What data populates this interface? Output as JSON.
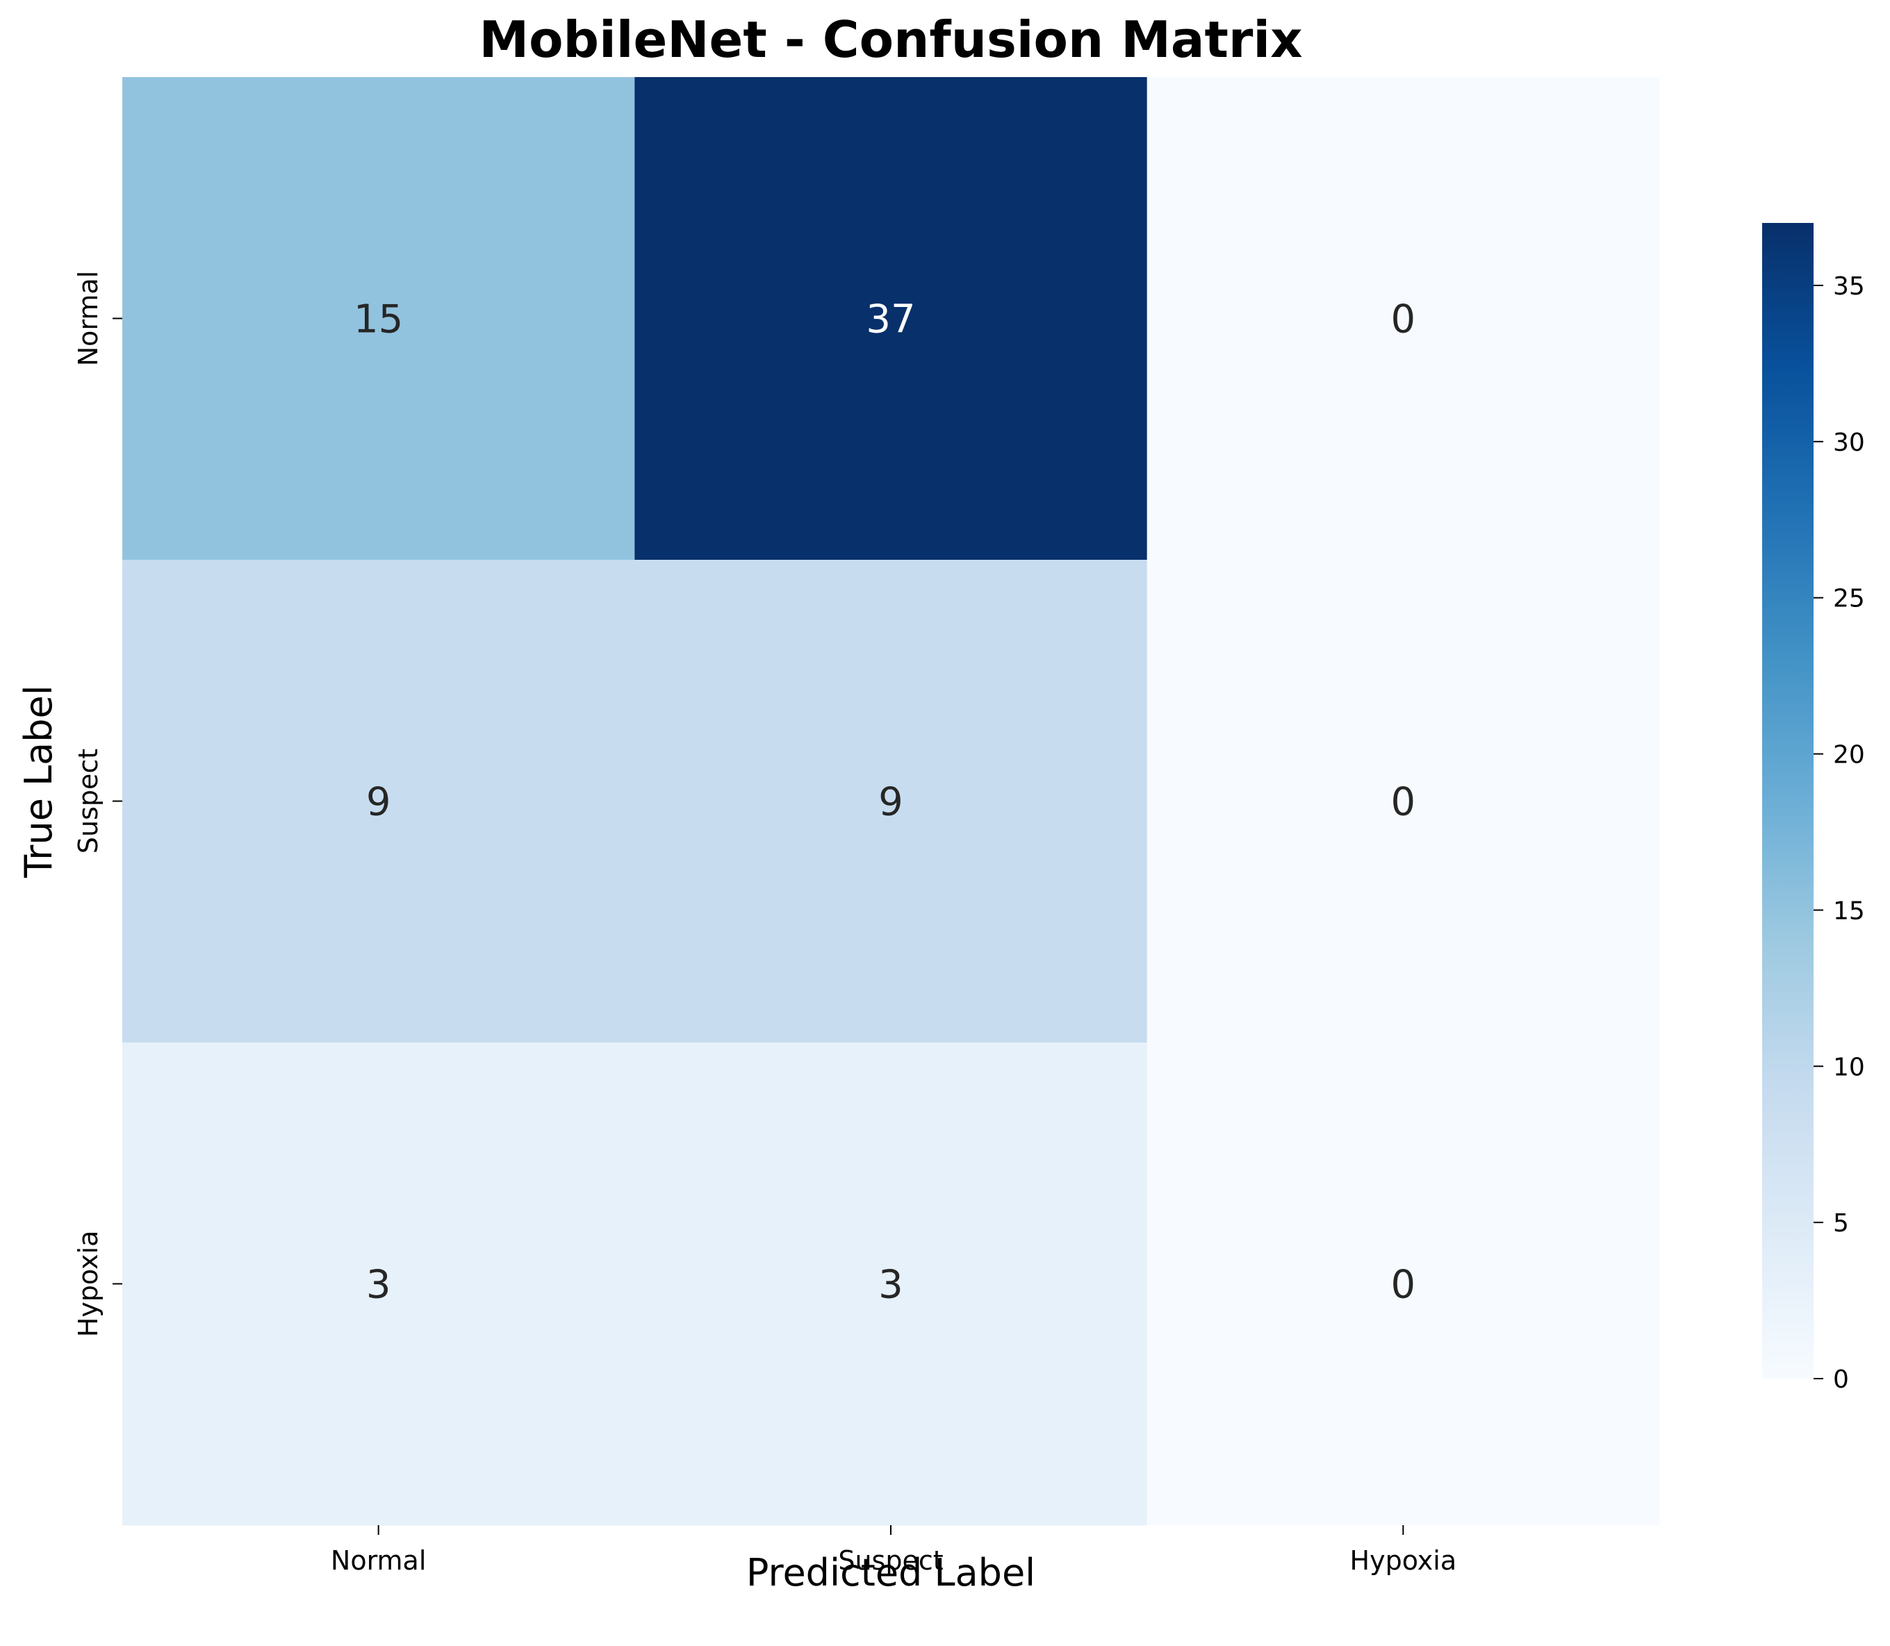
{
  "chart_data": {
    "type": "heatmap",
    "title": "MobileNet - Confusion Matrix",
    "xlabel": "Predicted Label",
    "ylabel": "True Label",
    "x_categories": [
      "Normal",
      "Suspect",
      "Hypoxia"
    ],
    "y_categories": [
      "Normal",
      "Suspect",
      "Hypoxia"
    ],
    "values": [
      [
        15,
        37,
        0
      ],
      [
        9,
        9,
        0
      ],
      [
        3,
        3,
        0
      ]
    ],
    "colormap": "Blues",
    "colorbar": {
      "range": [
        0,
        37
      ],
      "ticks": [
        0,
        5,
        10,
        15,
        20,
        25,
        30,
        35
      ]
    }
  },
  "colors": {
    "tick": "#000000",
    "annotation_dark_text": "#262626",
    "annotation_light_text": "#ffffff"
  }
}
